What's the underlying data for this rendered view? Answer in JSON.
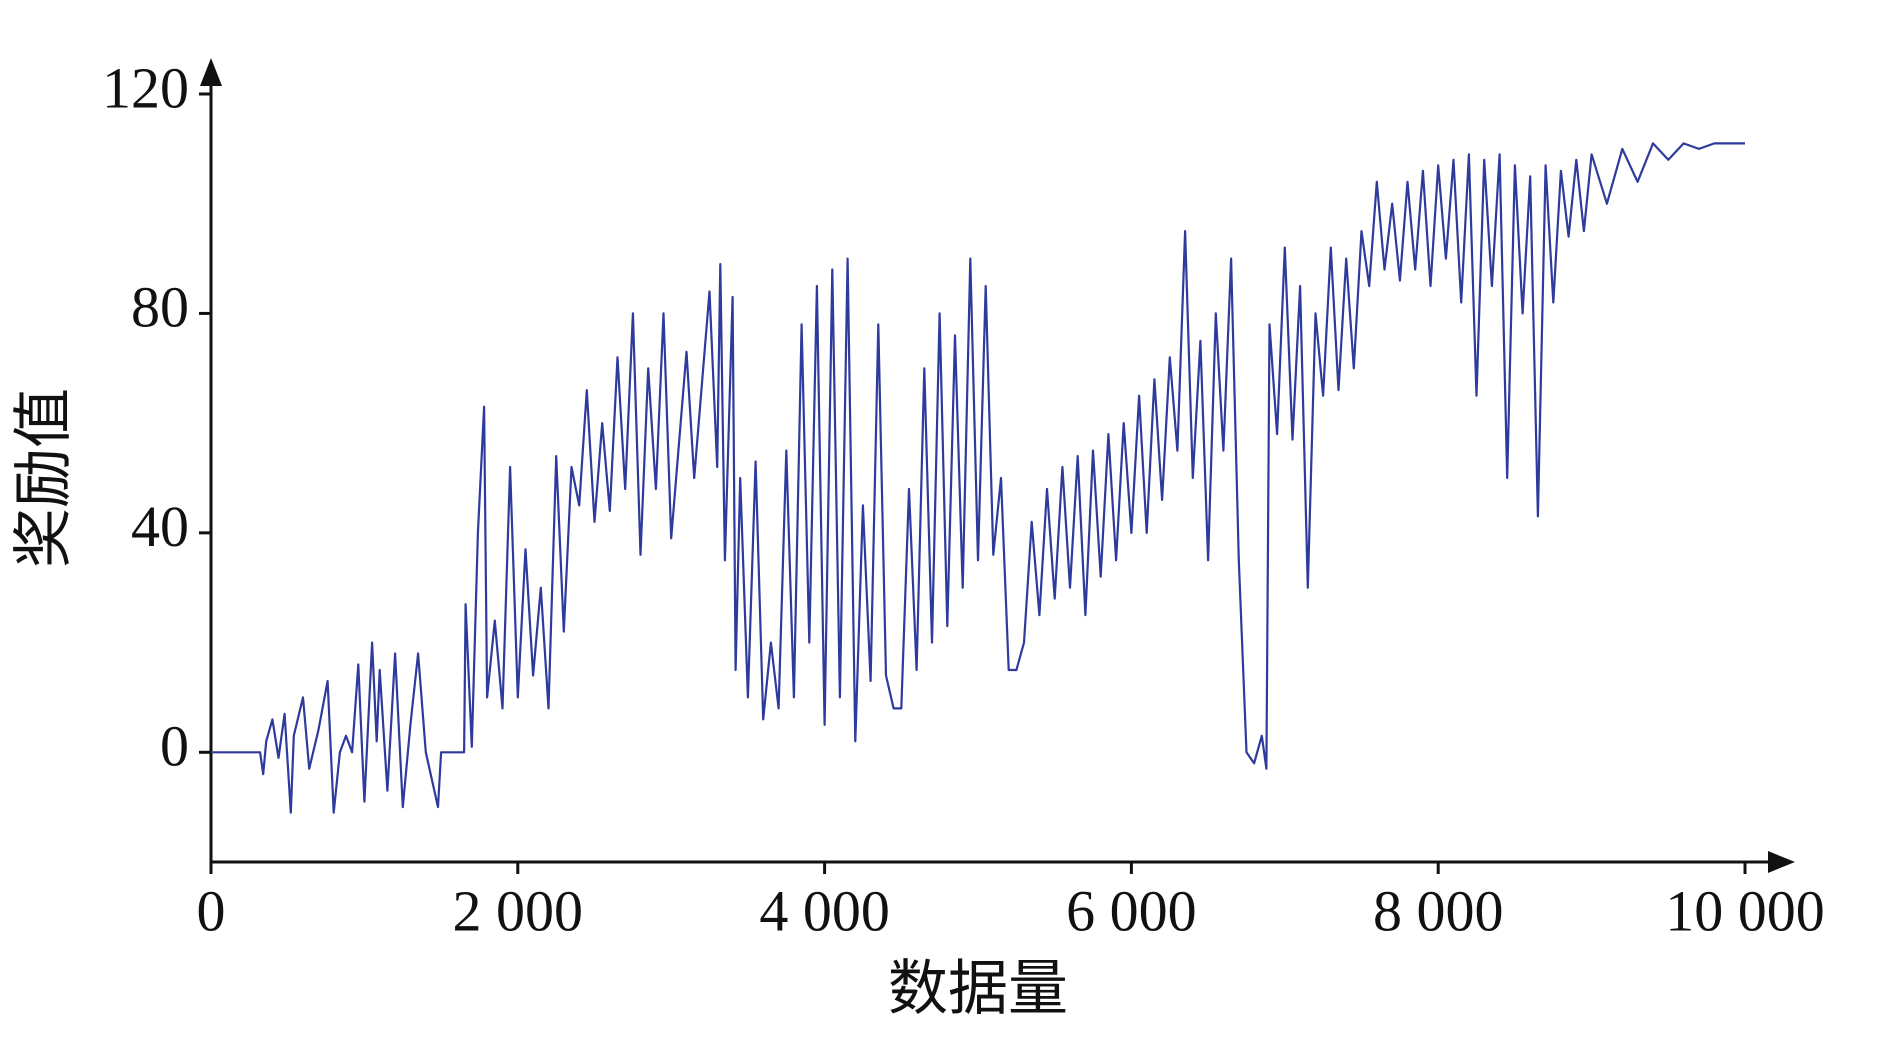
{
  "chart_data": {
    "type": "line",
    "x_label": "数据量",
    "y_label": "奖励值",
    "xlim": [
      0,
      10000
    ],
    "ylim": [
      -20,
      120
    ],
    "xticks": [
      0,
      {
        "value": 2000,
        "label": "2 000"
      },
      {
        "value": 4000,
        "label": "4 000"
      },
      {
        "value": 6000,
        "label": "6 000"
      },
      {
        "value": 8000,
        "label": "8 000"
      },
      {
        "value": 10000,
        "label": "10 000"
      }
    ],
    "yticks": [
      0,
      40,
      80,
      120
    ],
    "color": "#2e3a9c",
    "x": [
      0,
      320,
      340,
      360,
      400,
      440,
      480,
      520,
      540,
      600,
      640,
      700,
      760,
      800,
      840,
      880,
      920,
      960,
      1000,
      1050,
      1080,
      1100,
      1150,
      1200,
      1250,
      1300,
      1350,
      1400,
      1480,
      1500,
      1650,
      1660,
      1700,
      1740,
      1780,
      1800,
      1850,
      1900,
      1950,
      2000,
      2050,
      2100,
      2150,
      2200,
      2250,
      2300,
      2350,
      2400,
      2450,
      2500,
      2550,
      2600,
      2650,
      2700,
      2750,
      2800,
      2850,
      2900,
      2950,
      3000,
      3100,
      3150,
      3250,
      3300,
      3320,
      3350,
      3400,
      3420,
      3450,
      3500,
      3550,
      3600,
      3650,
      3700,
      3750,
      3800,
      3850,
      3900,
      3950,
      4000,
      4050,
      4100,
      4150,
      4200,
      4250,
      4300,
      4350,
      4400,
      4450,
      4500,
      4550,
      4600,
      4650,
      4700,
      4750,
      4800,
      4850,
      4900,
      4950,
      5000,
      5050,
      5100,
      5150,
      5200,
      5250,
      5300,
      5350,
      5400,
      5450,
      5500,
      5550,
      5600,
      5650,
      5700,
      5750,
      5800,
      5850,
      5900,
      5950,
      6000,
      6050,
      6100,
      6150,
      6200,
      6250,
      6300,
      6350,
      6400,
      6450,
      6500,
      6550,
      6600,
      6650,
      6700,
      6750,
      6800,
      6850,
      6880,
      6900,
      6950,
      7000,
      7050,
      7100,
      7150,
      7200,
      7250,
      7300,
      7350,
      7400,
      7450,
      7500,
      7550,
      7600,
      7650,
      7700,
      7750,
      7800,
      7850,
      7900,
      7950,
      8000,
      8050,
      8100,
      8150,
      8200,
      8250,
      8300,
      8350,
      8400,
      8450,
      8500,
      8550,
      8600,
      8650,
      8700,
      8750,
      8800,
      8850,
      8900,
      8950,
      9000,
      9100,
      9200,
      9300,
      9400,
      9500,
      9600,
      9700,
      9800,
      9900,
      10000
    ],
    "values": [
      0,
      0,
      -4,
      2,
      6,
      -1,
      7,
      -11,
      3,
      10,
      -3,
      4,
      13,
      -11,
      0,
      3,
      0,
      16,
      -9,
      20,
      2,
      15,
      -7,
      18,
      -10,
      5,
      18,
      0,
      -10,
      0,
      0,
      27,
      1,
      40,
      63,
      10,
      24,
      8,
      52,
      10,
      37,
      14,
      30,
      8,
      54,
      22,
      52,
      45,
      66,
      42,
      60,
      44,
      72,
      48,
      80,
      36,
      70,
      48,
      80,
      39,
      73,
      50,
      84,
      52,
      89,
      35,
      83,
      15,
      50,
      10,
      53,
      6,
      20,
      8,
      55,
      10,
      78,
      20,
      85,
      5,
      88,
      10,
      90,
      2,
      45,
      13,
      78,
      14,
      8,
      8,
      48,
      15,
      70,
      20,
      80,
      23,
      76,
      30,
      90,
      35,
      85,
      36,
      50,
      15,
      15,
      20,
      42,
      25,
      48,
      28,
      52,
      30,
      54,
      25,
      55,
      32,
      58,
      35,
      60,
      40,
      65,
      40,
      68,
      46,
      72,
      55,
      95,
      50,
      75,
      35,
      80,
      55,
      90,
      35,
      0,
      -2,
      3,
      -3,
      78,
      58,
      92,
      57,
      85,
      30,
      80,
      65,
      92,
      66,
      90,
      70,
      95,
      85,
      104,
      88,
      100,
      86,
      104,
      88,
      106,
      85,
      107,
      90,
      108,
      82,
      109,
      65,
      108,
      85,
      109,
      50,
      107,
      80,
      105,
      43,
      107,
      82,
      106,
      94,
      108,
      95,
      109,
      100,
      110,
      104,
      111,
      108,
      111,
      110,
      111,
      111,
      111
    ]
  }
}
